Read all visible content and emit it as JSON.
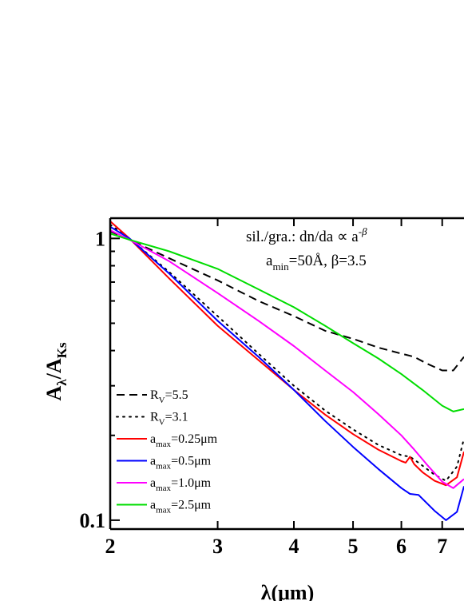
{
  "chart_data": {
    "type": "line",
    "xscale": "log",
    "yscale": "log",
    "xlim": [
      2,
      7.6
    ],
    "ylim": [
      0.093,
      1.18
    ],
    "xlabel": "λ(μm)",
    "ylabel": {
      "main": "A",
      "sub1": "λ",
      "slash": "/A",
      "sub2": "Ks"
    },
    "xticks": [
      {
        "value": 2,
        "label": "2"
      },
      {
        "value": 3,
        "label": "3"
      },
      {
        "value": 4,
        "label": "4"
      },
      {
        "value": 5,
        "label": "5"
      },
      {
        "value": 6,
        "label": "6"
      },
      {
        "value": 7,
        "label": "7"
      }
    ],
    "yticks": [
      {
        "value": 1,
        "label": "1"
      },
      {
        "value": 0.1,
        "label": "0.1"
      }
    ],
    "annotation": {
      "line1": "sil./gra.: dn/da ∝ a",
      "line1_sup": "-β",
      "line2_a": "a",
      "line2_sub": "min",
      "line2_rest": "=50Å, β=3.5"
    },
    "series": [
      {
        "name": "R_V=5.5",
        "legend": {
          "main": "R",
          "sub": "V",
          "rest": "=5.5"
        },
        "color": "#000000",
        "dash": "10,6",
        "x": [
          2.0,
          2.15,
          2.5,
          3.0,
          3.5,
          4.0,
          4.5,
          5.0,
          5.5,
          6.0,
          6.3,
          6.6,
          7.0,
          7.3,
          7.6
        ],
        "y": [
          1.06,
          0.99,
          0.85,
          0.71,
          0.6,
          0.53,
          0.47,
          0.44,
          0.41,
          0.39,
          0.38,
          0.36,
          0.34,
          0.34,
          0.38
        ]
      },
      {
        "name": "R_V=3.1",
        "legend": {
          "main": "R",
          "sub": "V",
          "rest": "=3.1"
        },
        "color": "#000000",
        "dash": "2,6",
        "x": [
          2.0,
          2.15,
          2.5,
          3.0,
          3.5,
          4.0,
          4.5,
          5.0,
          5.5,
          6.0,
          6.2,
          6.4,
          6.8,
          7.1,
          7.4,
          7.6
        ],
        "y": [
          1.12,
          1.0,
          0.76,
          0.53,
          0.39,
          0.3,
          0.245,
          0.21,
          0.185,
          0.17,
          0.168,
          0.16,
          0.145,
          0.138,
          0.155,
          0.195
        ]
      },
      {
        "name": "a_max=0.25μm",
        "legend": {
          "main": "a",
          "sub": "max",
          "rest": "=0.25μm"
        },
        "color": "#ff0000",
        "dash": "",
        "x": [
          2.0,
          2.15,
          2.5,
          3.0,
          3.5,
          4.0,
          4.5,
          5.0,
          5.5,
          6.0,
          6.1,
          6.2,
          6.3,
          6.5,
          6.8,
          7.1,
          7.4,
          7.6
        ],
        "y": [
          1.15,
          1.0,
          0.72,
          0.49,
          0.37,
          0.29,
          0.237,
          0.202,
          0.178,
          0.162,
          0.16,
          0.168,
          0.158,
          0.148,
          0.138,
          0.133,
          0.142,
          0.175
        ]
      },
      {
        "name": "a_max=0.5μm",
        "legend": {
          "main": "a",
          "sub": "max",
          "rest": "=0.5μm"
        },
        "color": "#0000ff",
        "dash": "",
        "x": [
          2.0,
          2.15,
          2.5,
          3.0,
          3.5,
          4.0,
          4.5,
          5.0,
          5.5,
          6.0,
          6.2,
          6.4,
          6.8,
          7.1,
          7.4,
          7.6
        ],
        "y": [
          1.1,
          1.0,
          0.75,
          0.51,
          0.38,
          0.29,
          0.225,
          0.182,
          0.152,
          0.13,
          0.124,
          0.123,
          0.108,
          0.1,
          0.107,
          0.132
        ]
      },
      {
        "name": "a_max=1.0μm",
        "legend": {
          "main": "a",
          "sub": "max",
          "rest": "=1.0μm"
        },
        "color": "#ff00ff",
        "dash": "",
        "x": [
          2.0,
          2.15,
          2.5,
          3.0,
          3.5,
          4.0,
          4.5,
          5.0,
          5.5,
          6.0,
          6.3,
          6.6,
          7.0,
          7.3,
          7.6
        ],
        "y": [
          1.07,
          0.99,
          0.83,
          0.64,
          0.51,
          0.415,
          0.34,
          0.285,
          0.238,
          0.2,
          0.178,
          0.158,
          0.137,
          0.13,
          0.14
        ]
      },
      {
        "name": "a_max=2.5μm",
        "legend": {
          "main": "a",
          "sub": "max",
          "rest": "=2.5μm"
        },
        "color": "#00dd00",
        "dash": "",
        "x": [
          2.0,
          2.15,
          2.5,
          3.0,
          3.5,
          4.0,
          4.5,
          5.0,
          5.5,
          6.0,
          6.5,
          7.0,
          7.3,
          7.6
        ],
        "y": [
          1.04,
          0.99,
          0.9,
          0.78,
          0.66,
          0.57,
          0.49,
          0.425,
          0.375,
          0.33,
          0.29,
          0.255,
          0.243,
          0.248
        ]
      }
    ]
  }
}
